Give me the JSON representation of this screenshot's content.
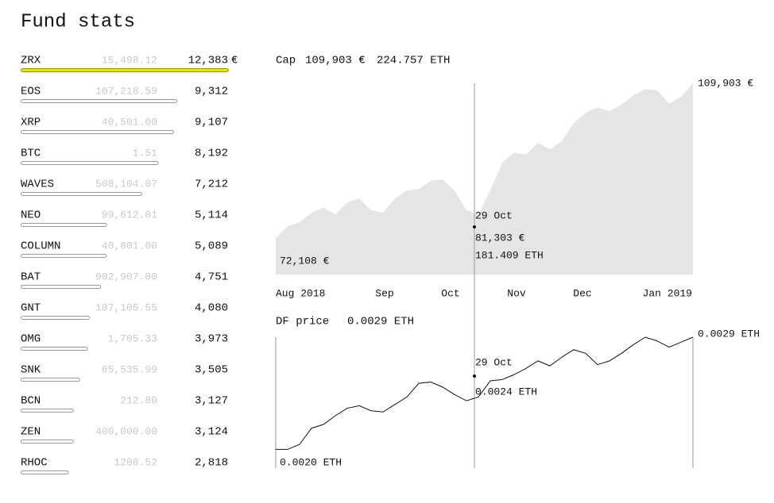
{
  "header": {
    "title": "Fund stats"
  },
  "holdings": [
    {
      "name": "ZRX",
      "amount": "15,498.12",
      "value": 12383,
      "label": "12,383",
      "currency": "€",
      "selected": true
    },
    {
      "name": "EOS",
      "amount": "107,218.59",
      "value": 9312,
      "label": "9,312"
    },
    {
      "name": "XRP",
      "amount": "40,501.00",
      "value": 9107,
      "label": "9,107"
    },
    {
      "name": "BTC",
      "amount": "1.51",
      "value": 8192,
      "label": "8,192"
    },
    {
      "name": "WAVES",
      "amount": "508,104.07",
      "value": 7212,
      "label": "7,212"
    },
    {
      "name": "NEO",
      "amount": "99,612.01",
      "value": 5114,
      "label": "5,114"
    },
    {
      "name": "COLUMN",
      "amount": "40,001.00",
      "value": 5089,
      "label": "5,089"
    },
    {
      "name": "BAT",
      "amount": "902,907.00",
      "value": 4751,
      "label": "4,751"
    },
    {
      "name": "GNT",
      "amount": "107,105.55",
      "value": 4080,
      "label": "4,080"
    },
    {
      "name": "OMG",
      "amount": "1,705.33",
      "value": 3973,
      "label": "3,973"
    },
    {
      "name": "SNK",
      "amount": "65,535.99",
      "value": 3505,
      "label": "3,505"
    },
    {
      "name": "BCN",
      "amount": "212.80",
      "value": 3127,
      "label": "3,127"
    },
    {
      "name": "ZEN",
      "amount": "400,000.00",
      "value": 3124,
      "label": "3,124"
    },
    {
      "name": "RHOC",
      "amount": "1208.52",
      "value": 2818,
      "label": "2,818"
    }
  ],
  "cap_chart": {
    "type": "area",
    "title": "Cap",
    "total": "109,903 €",
    "total_eth": "224.757 ETH",
    "end_label": "109,903 €",
    "start_label": "72,108 €",
    "cursor": {
      "date": "29 Oct",
      "value": "81,303 €",
      "eth": "181.409 ETH"
    },
    "x_labels": [
      "Aug 2018",
      "Sep",
      "Oct",
      "Nov",
      "Dec",
      "Jan 2019"
    ],
    "ylim": [
      63200,
      110900
    ],
    "values": [
      72108,
      75000,
      76000,
      78300,
      79500,
      77900,
      80800,
      81800,
      78900,
      78300,
      81800,
      83700,
      84100,
      86100,
      86400,
      83700,
      78900,
      77900,
      83700,
      90500,
      93000,
      92500,
      95400,
      93800,
      95800,
      100200,
      102700,
      104100,
      103100,
      104700,
      107000,
      108500,
      108200,
      105000,
      106600,
      109903
    ]
  },
  "price_chart": {
    "type": "line",
    "title": "DF price",
    "current": "0.0029 ETH",
    "end_label": "0.0029 ETH",
    "start_label": "0.0020 ETH",
    "cursor": {
      "date": "29 Oct",
      "value": "0.0024 ETH"
    },
    "ylim": [
      0.00185,
      0.0029
    ],
    "values": [
      0.002,
      0.002,
      0.00204,
      0.00217,
      0.0022,
      0.00227,
      0.00233,
      0.00235,
      0.00231,
      0.0023,
      0.00236,
      0.00242,
      0.00253,
      0.00254,
      0.0025,
      0.00244,
      0.00239,
      0.00242,
      0.00255,
      0.00256,
      0.0026,
      0.00265,
      0.00271,
      0.00267,
      0.00274,
      0.0028,
      0.00277,
      0.00268,
      0.00271,
      0.00277,
      0.00284,
      0.0029,
      0.00287,
      0.00282,
      0.00286,
      0.0029
    ]
  }
}
